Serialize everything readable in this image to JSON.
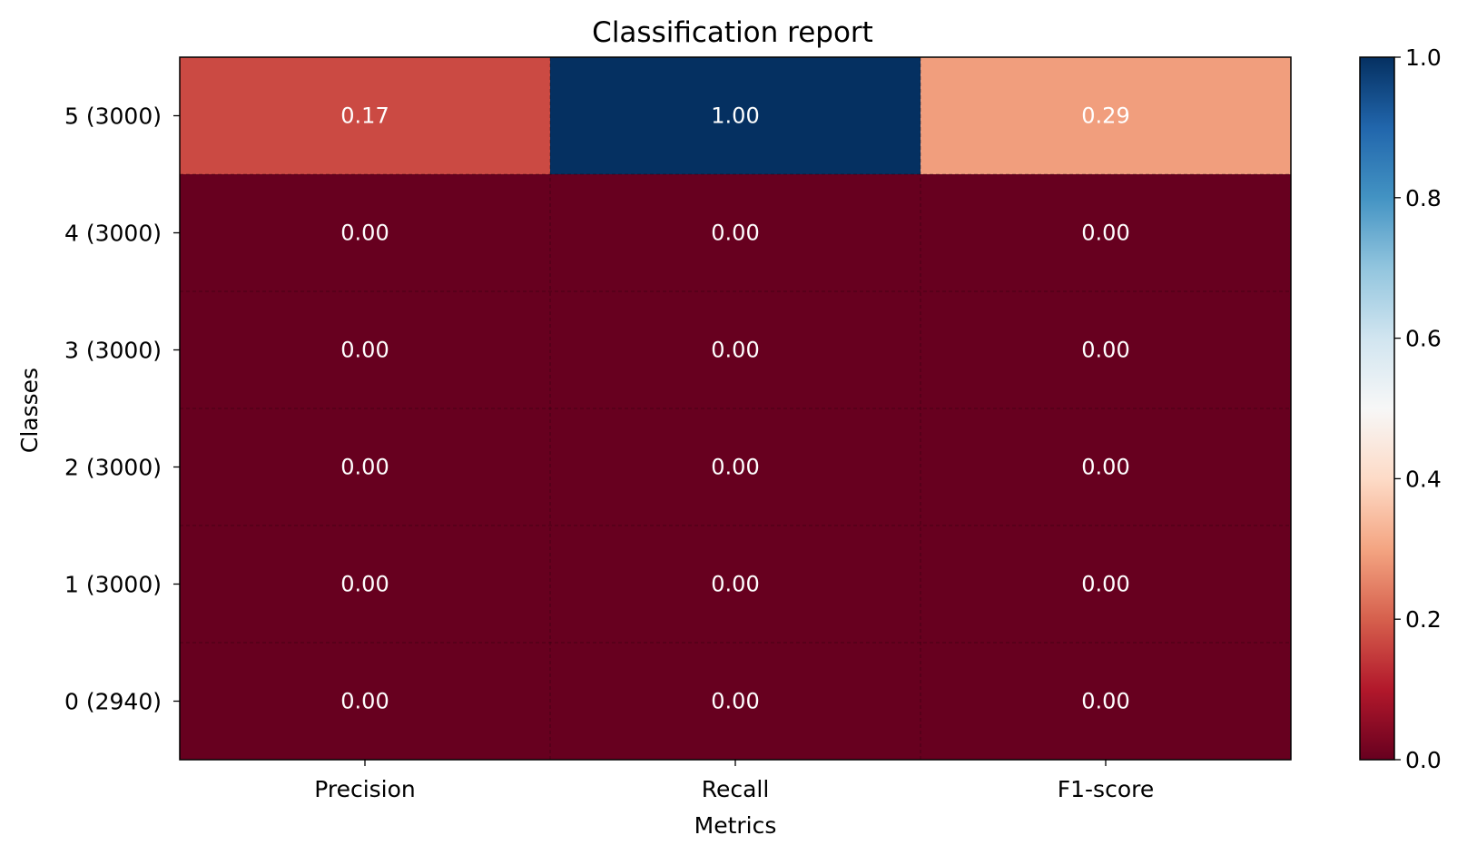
{
  "chart_data": {
    "type": "heatmap",
    "title": "Classification report",
    "xlabel": "Metrics",
    "ylabel": "Classes",
    "x_categories": [
      "Precision",
      "Recall",
      "F1-score"
    ],
    "y_categories": [
      "5 (3000)",
      "4 (3000)",
      "3 (3000)",
      "2 (3000)",
      "1 (3000)",
      "0 (2940)"
    ],
    "values": [
      [
        0.17,
        1.0,
        0.29
      ],
      [
        0.0,
        0.0,
        0.0
      ],
      [
        0.0,
        0.0,
        0.0
      ],
      [
        0.0,
        0.0,
        0.0
      ],
      [
        0.0,
        0.0,
        0.0
      ],
      [
        0.0,
        0.0,
        0.0
      ]
    ],
    "value_format_decimals": 2,
    "colormap": "RdBu",
    "colorbar": {
      "range": [
        0.0,
        1.0
      ],
      "ticks": [
        0.0,
        0.2,
        0.4,
        0.6,
        0.8,
        1.0
      ],
      "tick_labels": [
        "0.0",
        "0.2",
        "0.4",
        "0.6",
        "0.8",
        "1.0"
      ]
    },
    "colormap_stops": [
      {
        "v": 0.0,
        "color": "#67001f"
      },
      {
        "v": 0.1,
        "color": "#b2182b"
      },
      {
        "v": 0.2,
        "color": "#d6604d"
      },
      {
        "v": 0.3,
        "color": "#f4a582"
      },
      {
        "v": 0.4,
        "color": "#fddbc7"
      },
      {
        "v": 0.5,
        "color": "#f7f7f7"
      },
      {
        "v": 0.6,
        "color": "#d1e5f0"
      },
      {
        "v": 0.7,
        "color": "#92c5de"
      },
      {
        "v": 0.8,
        "color": "#4393c3"
      },
      {
        "v": 0.9,
        "color": "#2166ac"
      },
      {
        "v": 1.0,
        "color": "#053061"
      }
    ],
    "grid": true,
    "legend": "colorbar-right"
  }
}
